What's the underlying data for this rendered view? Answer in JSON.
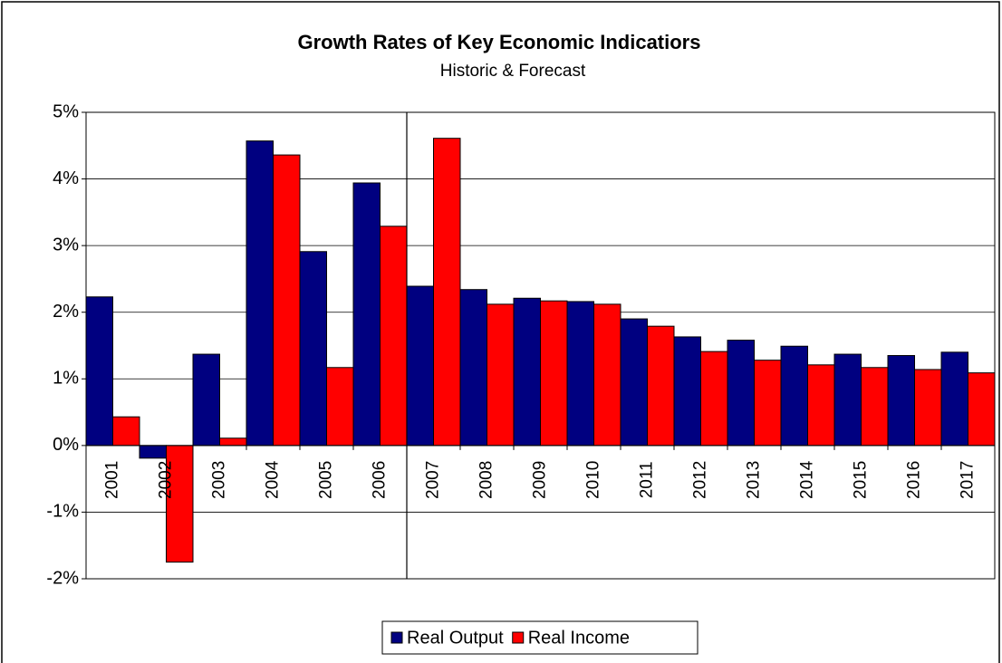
{
  "chart_data": {
    "type": "bar",
    "title": "Growth Rates of Key Economic Indicatiors",
    "subtitle": "Historic & Forecast",
    "categories": [
      "2001",
      "2002",
      "2003",
      "2004",
      "2005",
      "2006",
      "2007",
      "2008",
      "2009",
      "2010",
      "2011",
      "2012",
      "2013",
      "2014",
      "2015",
      "2016",
      "2017"
    ],
    "series": [
      {
        "name": "Real Output",
        "color": "#000080",
        "values": [
          2.23,
          -0.19,
          1.37,
          4.57,
          2.91,
          3.94,
          2.39,
          2.34,
          2.21,
          2.16,
          1.9,
          1.63,
          1.58,
          1.49,
          1.37,
          1.35,
          1.4
        ]
      },
      {
        "name": "Real Income",
        "color": "#ff0000",
        "values": [
          0.43,
          -1.75,
          0.11,
          4.36,
          1.17,
          3.29,
          4.61,
          2.12,
          2.17,
          2.12,
          1.79,
          1.41,
          1.28,
          1.21,
          1.17,
          1.14,
          1.09
        ]
      }
    ],
    "ylim": [
      -2,
      5
    ],
    "yticks": [
      {
        "value": -2,
        "label": "-2%"
      },
      {
        "value": -1,
        "label": "-1%"
      },
      {
        "value": 0,
        "label": "0%"
      },
      {
        "value": 1,
        "label": "1%"
      },
      {
        "value": 2,
        "label": "2%"
      },
      {
        "value": 3,
        "label": "3%"
      },
      {
        "value": 4,
        "label": "4%"
      },
      {
        "value": 5,
        "label": "5%"
      }
    ],
    "grid": true,
    "legend": "bottom"
  }
}
